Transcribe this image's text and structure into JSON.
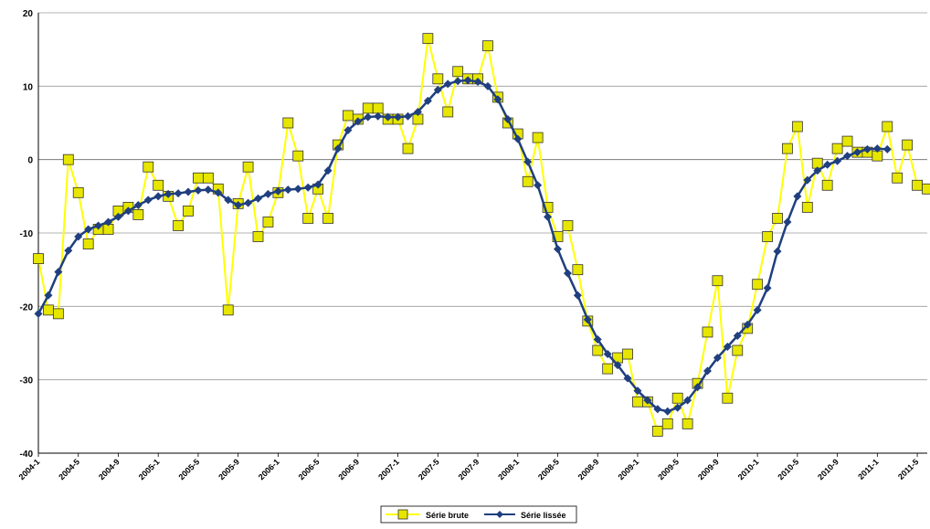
{
  "chart_data": {
    "type": "line",
    "title": "",
    "xlabel": "",
    "ylabel": "",
    "ylim": [
      -40,
      20
    ],
    "yticks": [
      -40,
      -30,
      -20,
      -10,
      0,
      10,
      20
    ],
    "grid": true,
    "legend_position": "bottom-center",
    "x_tick_labels": [
      "2004-1",
      "2004-5",
      "2004-9",
      "2005-1",
      "2005-5",
      "2005-9",
      "2006-1",
      "2006-5",
      "2006-9",
      "2007-1",
      "2007-5",
      "2007-9",
      "2008-1",
      "2008-5",
      "2008-9",
      "2009-1",
      "2009-5",
      "2009-9",
      "2010-1",
      "2010-5",
      "2010-9",
      "2011-1",
      "2011-5"
    ],
    "series": [
      {
        "name": "Série brute",
        "color": "#ffff00",
        "marker_fill": "#e6e600",
        "marker_stroke": "#333333",
        "marker": "square",
        "values": [
          -13.5,
          -20.5,
          -21,
          0,
          -4.5,
          -11.5,
          -9.5,
          -9.5,
          -7,
          -6.5,
          -7.5,
          -1,
          -3.5,
          -5,
          -9,
          -7,
          -2.5,
          -2.5,
          -4,
          -20.5,
          -6,
          -1,
          -10.5,
          -8.5,
          -4.5,
          5,
          0.5,
          -8,
          -4,
          -8,
          2,
          6,
          5.5,
          7,
          7,
          5.5,
          5.5,
          1.5,
          5.5,
          16.5,
          11,
          6.5,
          12,
          11,
          11,
          15.5,
          8.5,
          5,
          3.5,
          -3,
          3,
          -6.5,
          -10.5,
          -9,
          -15,
          -22,
          -26,
          -28.5,
          -27,
          -26.5,
          -33,
          -33,
          -37,
          -36,
          -32.5,
          -36,
          -30.5,
          -23.5,
          -16.5,
          -32.5,
          -26,
          -23,
          -17,
          -10.5,
          -8,
          1.5,
          4.5,
          -6.5,
          -0.5,
          -3.5,
          1.5,
          2.5,
          1,
          1,
          0.5,
          4.5,
          -2.5,
          2,
          -3.5,
          -4
        ]
      },
      {
        "name": "Série lissée",
        "color": "#1f3f7f",
        "marker": "diamond",
        "values": [
          -21,
          -18.5,
          -15.3,
          -12.4,
          -10.5,
          -9.5,
          -9,
          -8.5,
          -7.8,
          -7,
          -6.2,
          -5.5,
          -5,
          -4.7,
          -4.6,
          -4.4,
          -4.2,
          -4.1,
          -4.5,
          -5.5,
          -6.2,
          -5.9,
          -5.3,
          -4.7,
          -4.3,
          -4.1,
          -4,
          -3.8,
          -3.4,
          -1.5,
          1.5,
          4,
          5.2,
          5.8,
          5.9,
          5.8,
          5.8,
          5.9,
          6.5,
          8,
          9.5,
          10.3,
          10.7,
          10.8,
          10.6,
          10,
          8.2,
          5.5,
          2.8,
          -0.3,
          -3.5,
          -7.8,
          -12.2,
          -15.5,
          -18.5,
          -21.8,
          -24.5,
          -26.5,
          -28,
          -29.8,
          -31.5,
          -32.8,
          -34,
          -34.3,
          -33.8,
          -32.8,
          -31,
          -28.8,
          -27,
          -25.5,
          -24,
          -22.5,
          -20.5,
          -17.5,
          -12.5,
          -8.5,
          -5,
          -2.8,
          -1.5,
          -0.7,
          -0.2,
          0.5,
          1,
          1.4,
          1.5,
          1.4
        ]
      }
    ]
  }
}
